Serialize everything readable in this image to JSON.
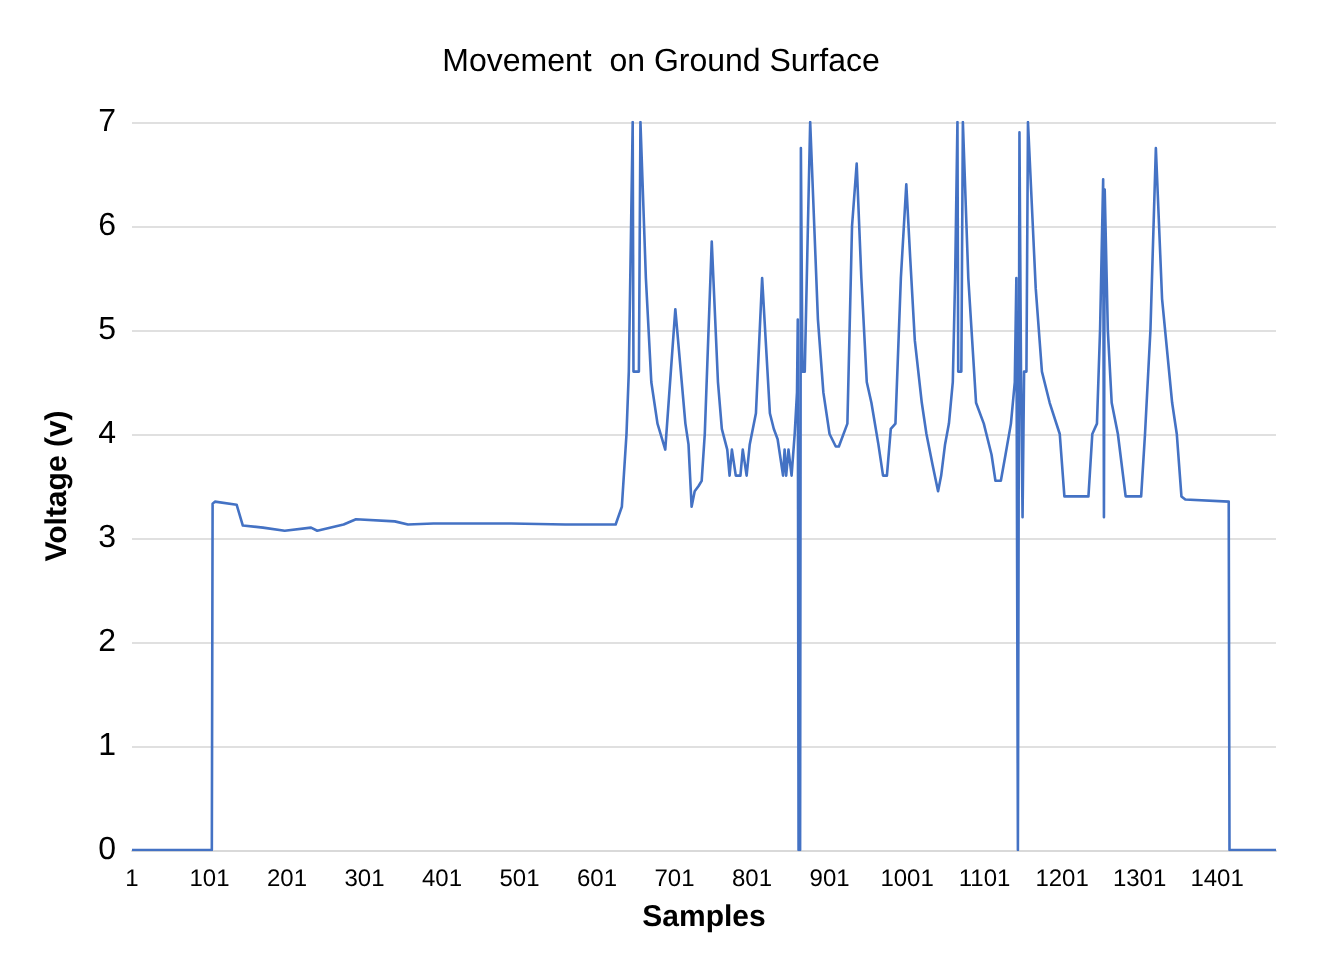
{
  "chart_data": {
    "type": "line",
    "title": "Movement  on Ground Surface",
    "xlabel": "Samples",
    "ylabel": "Voltage (v)",
    "xlim": [
      1,
      1477
    ],
    "xticks": [
      1,
      101,
      201,
      301,
      401,
      501,
      601,
      701,
      801,
      901,
      1001,
      1101,
      1201,
      1301,
      1401
    ],
    "ylim": [
      0,
      7
    ],
    "yticks": [
      0,
      1,
      2,
      3,
      4,
      5,
      6,
      7
    ],
    "grid": "y",
    "marker": "none",
    "line_style": "solid",
    "series": [
      {
        "color": "#4472c4",
        "x": [
          1,
          104,
          105,
          108,
          136,
          144,
          170,
          198,
          232,
          240,
          274,
          290,
          340,
          357,
          390,
          490,
          560,
          625,
          633,
          639,
          642,
          647,
          648,
          655,
          657,
          664,
          671,
          679,
          689,
          702,
          715,
          719,
          723,
          727,
          732,
          736,
          740,
          749,
          757,
          762,
          769,
          772,
          775,
          780,
          786,
          789,
          794,
          798,
          806,
          814,
          824,
          829,
          834,
          841,
          843,
          845,
          848,
          852,
          856,
          859,
          860,
          861,
          863,
          864,
          866,
          869,
          876,
          886,
          893,
          901,
          909,
          913,
          924,
          930,
          936,
          942,
          949,
          955,
          964,
          970,
          975,
          980,
          986,
          993,
          1000,
          1005,
          1011,
          1020,
          1026,
          1034,
          1041,
          1045,
          1050,
          1055,
          1060,
          1063,
          1066,
          1067,
          1071,
          1073,
          1080,
          1090,
          1100,
          1110,
          1115,
          1122,
          1128,
          1135,
          1140,
          1142,
          1144,
          1146,
          1148,
          1150,
          1152,
          1155,
          1157,
          1167,
          1175,
          1185,
          1198,
          1204,
          1235,
          1240,
          1246,
          1250,
          1254,
          1255,
          1256,
          1260,
          1265,
          1273,
          1283,
          1290,
          1303,
          1308,
          1315,
          1322,
          1330,
          1343,
          1349,
          1355,
          1360,
          1416,
          1417,
          1477
        ],
        "values": [
          0,
          0,
          3.33,
          3.35,
          3.32,
          3.12,
          3.1,
          3.07,
          3.1,
          3.07,
          3.13,
          3.18,
          3.16,
          3.13,
          3.14,
          3.14,
          3.13,
          3.13,
          3.3,
          4.0,
          4.6,
          7.0,
          4.6,
          4.6,
          7.0,
          5.5,
          4.5,
          4.1,
          3.85,
          5.2,
          4.1,
          3.9,
          3.3,
          3.45,
          3.5,
          3.55,
          4.0,
          5.85,
          4.5,
          4.05,
          3.85,
          3.6,
          3.85,
          3.6,
          3.6,
          3.85,
          3.6,
          3.9,
          4.2,
          5.5,
          4.2,
          4.05,
          3.95,
          3.6,
          3.85,
          3.6,
          3.85,
          3.6,
          4.0,
          4.4,
          5.1,
          0,
          0,
          6.75,
          4.6,
          4.6,
          7.0,
          5.1,
          4.4,
          4.0,
          3.88,
          3.88,
          4.1,
          6.0,
          6.6,
          5.5,
          4.5,
          4.3,
          3.9,
          3.6,
          3.6,
          4.05,
          4.1,
          5.5,
          6.4,
          5.7,
          4.9,
          4.3,
          4.0,
          3.7,
          3.45,
          3.6,
          3.9,
          4.1,
          4.5,
          5.5,
          7.0,
          4.6,
          4.6,
          7.0,
          5.5,
          4.3,
          4.1,
          3.8,
          3.55,
          3.55,
          3.8,
          4.1,
          4.5,
          5.5,
          0,
          6.9,
          4.6,
          3.2,
          4.6,
          4.6,
          7.0,
          5.4,
          4.6,
          4.3,
          4.0,
          3.4,
          3.4,
          4.0,
          4.1,
          5.0,
          6.45,
          3.2,
          6.35,
          5.0,
          4.3,
          4.0,
          3.4,
          3.4,
          3.4,
          4.0,
          5.0,
          6.75,
          5.3,
          4.3,
          4.0,
          3.4,
          3.37,
          3.35,
          0,
          0
        ]
      }
    ]
  }
}
